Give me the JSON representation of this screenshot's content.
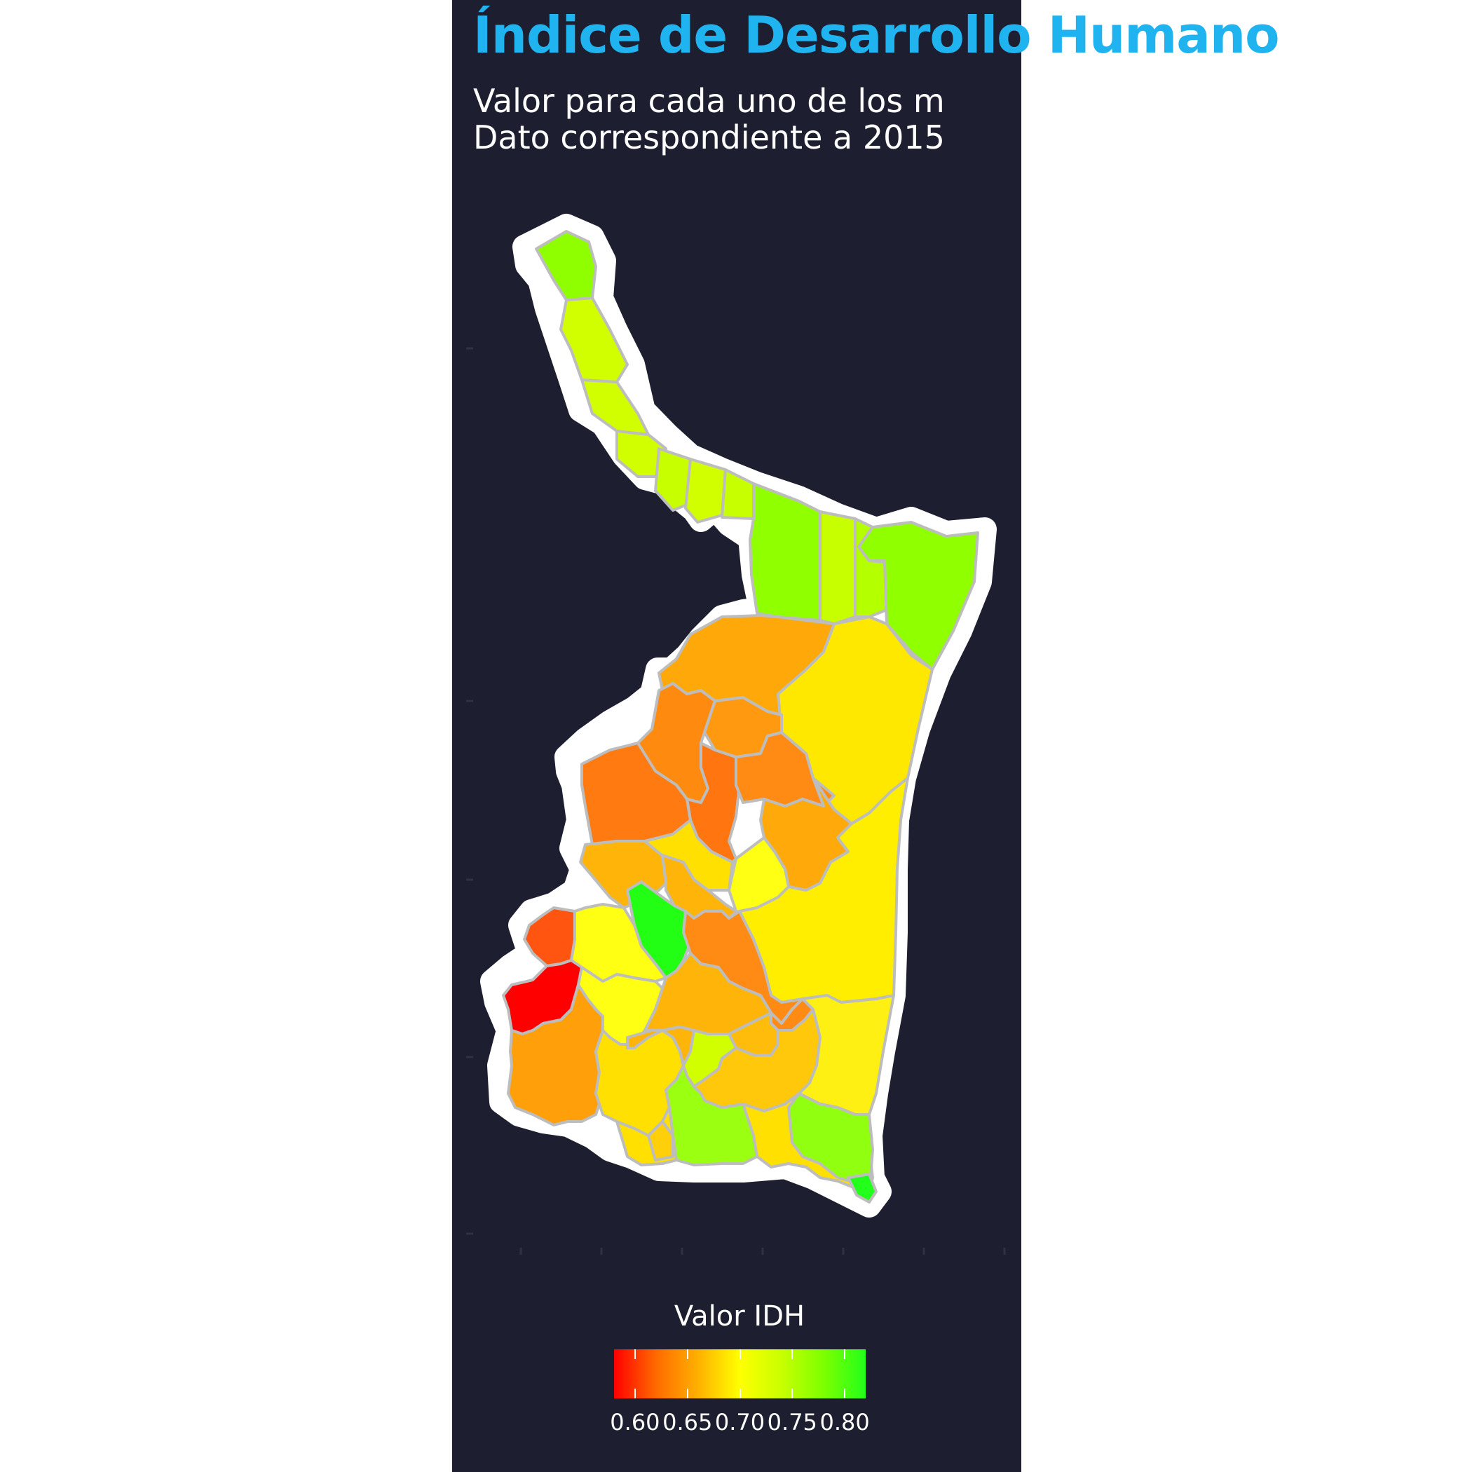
{
  "header": {
    "title": "Índice de Desarrollo Humano",
    "subtitle_line1": "Valor para cada uno de los m",
    "subtitle_line2": "Dato correspondiente a 2015"
  },
  "legend": {
    "title": "Valor IDH",
    "min": 0.58,
    "max": 0.82,
    "ticks": [
      {
        "value": 0.6,
        "label": "0.60"
      },
      {
        "value": 0.65,
        "label": "0.65"
      },
      {
        "value": 0.7,
        "label": "0.70"
      },
      {
        "value": 0.75,
        "label": "0.75"
      },
      {
        "value": 0.8,
        "label": "0.80"
      }
    ],
    "colors": [
      "#ff0000",
      "#ff6a00",
      "#ffb000",
      "#ffff00",
      "#c8ff00",
      "#7dff00",
      "#22ff1a"
    ]
  },
  "colors": {
    "panel": "#1d1f30",
    "title": "#1fb3f0",
    "outline": "#ffffff",
    "borders": "#c0c0c0"
  }
}
